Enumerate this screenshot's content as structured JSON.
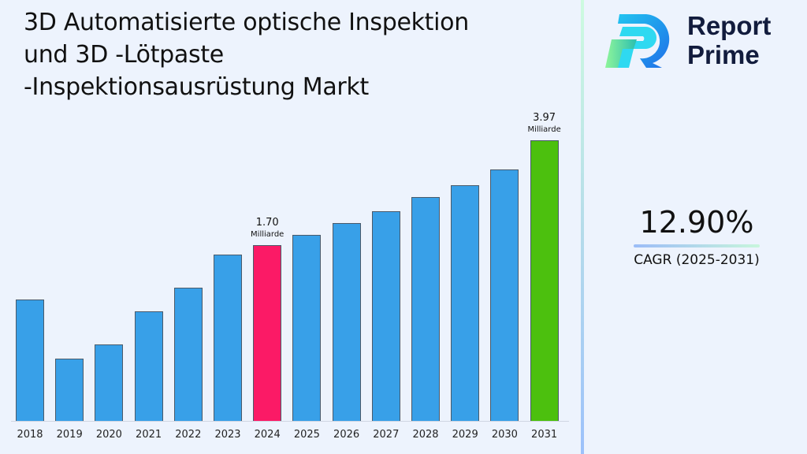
{
  "title": "3D Automatisierte optische Inspektion und 3D -Lötpaste -Inspektionsausrüstung Markt",
  "title_lines": [
    "3D Automatisierte optische Inspektion",
    "und 3D -Lötpaste",
    "-Inspektionsausrüstung Markt"
  ],
  "brand": {
    "name_line1": "Report",
    "name_line2": "Prime"
  },
  "cagr": {
    "value": "12.90%",
    "label": "CAGR (2025-2031)"
  },
  "annotations": {
    "a2024": {
      "value": "1.70",
      "unit": "Milliarde"
    },
    "a2031": {
      "value": "3.97",
      "unit": "Milliarde"
    }
  },
  "colors": {
    "default_bar": "#38a0e8",
    "highlight_2024": "#fb1a66",
    "highlight_2031": "#4cc00e"
  },
  "chart_data": {
    "type": "bar",
    "title": "3D Automatisierte optische Inspektion und 3D -Lötpaste -Inspektionsausrüstung Markt",
    "xlabel": "",
    "ylabel": "",
    "categories": [
      "2018",
      "2019",
      "2020",
      "2021",
      "2022",
      "2023",
      "2024",
      "2025",
      "2026",
      "2027",
      "2028",
      "2029",
      "2030",
      "2031"
    ],
    "values": [
      1.18,
      0.88,
      0.95,
      1.12,
      1.3,
      1.55,
      1.7,
      1.92,
      2.17,
      2.45,
      2.76,
      3.12,
      3.52,
      3.97
    ],
    "unit": "Milliarde",
    "labeled_points": [
      {
        "x": "2024",
        "value": 1.7,
        "label": "1.70 Milliarde"
      },
      {
        "x": "2031",
        "value": 3.97,
        "label": "3.97 Milliarde"
      }
    ],
    "cagr": "12.90%",
    "cagr_period": "2025-2031",
    "grid": false,
    "legend": null,
    "bar_pixel_tops": [
      380,
      455,
      437,
      395,
      365,
      323,
      311,
      298,
      283,
      268,
      250,
      235,
      215,
      178
    ]
  }
}
